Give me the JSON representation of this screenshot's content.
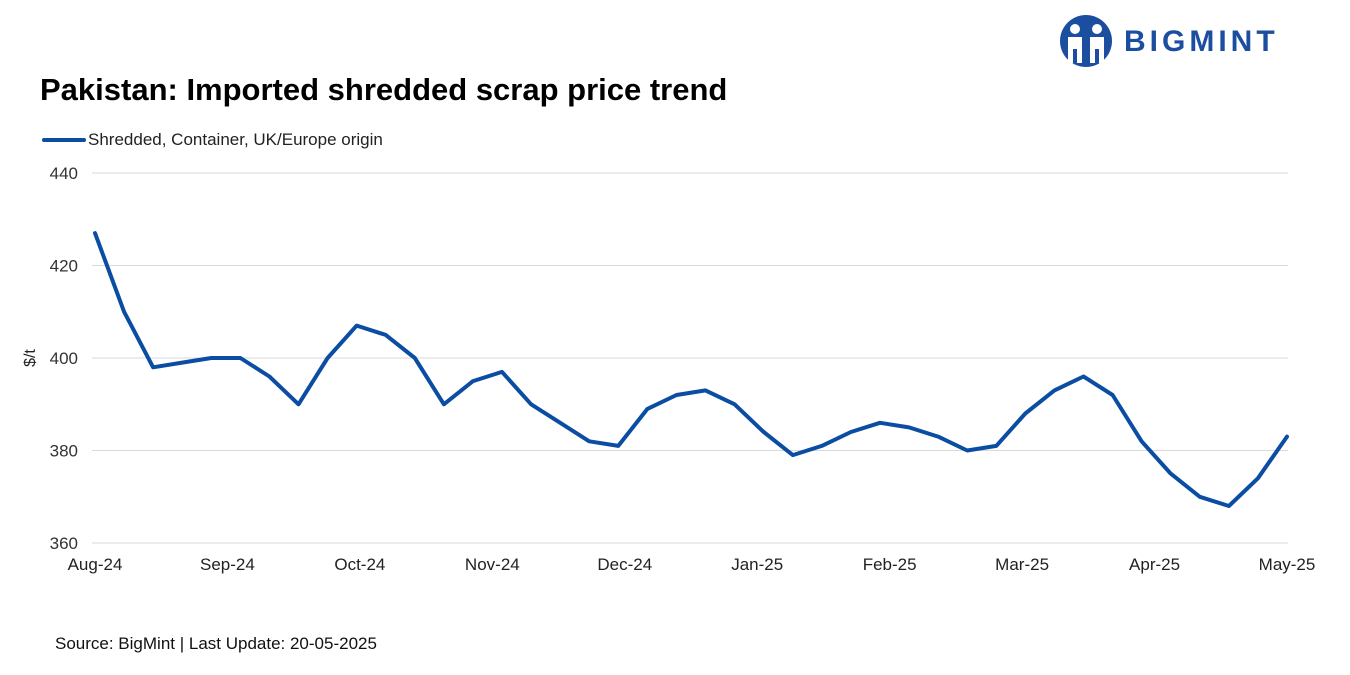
{
  "header": {
    "title": "Pakistan: Imported shredded scrap price trend",
    "logo_text": "BIGMINT"
  },
  "footer": {
    "source": "Source: BigMint | Last Update: 20-05-2025"
  },
  "colors": {
    "series": "#0a4da2",
    "logo": "#1c4e9f",
    "grid": "#d9d9d9"
  },
  "chart_data": {
    "type": "line",
    "title": "Pakistan: Imported shredded scrap price trend",
    "xlabel": "",
    "ylabel": "$/t",
    "ylim": [
      360,
      440
    ],
    "yticks": [
      360,
      380,
      400,
      420,
      440
    ],
    "xtick_labels": [
      "Aug-24",
      "Sep-24",
      "Oct-24",
      "Nov-24",
      "Dec-24",
      "Jan-25",
      "Feb-25",
      "Mar-25",
      "Apr-25",
      "May-25"
    ],
    "grid": "horizontal",
    "legend": "top-left",
    "series": [
      {
        "name": "Shredded, Container, UK/Europe origin",
        "color": "#0a4da2",
        "values": [
          427,
          410,
          398,
          399,
          400,
          400,
          396,
          390,
          400,
          407,
          405,
          400,
          390,
          395,
          397,
          390,
          386,
          382,
          381,
          389,
          392,
          393,
          390,
          384,
          379,
          381,
          384,
          386,
          385,
          383,
          380,
          381,
          388,
          393,
          396,
          392,
          382,
          375,
          370,
          368,
          374,
          383
        ]
      }
    ]
  }
}
